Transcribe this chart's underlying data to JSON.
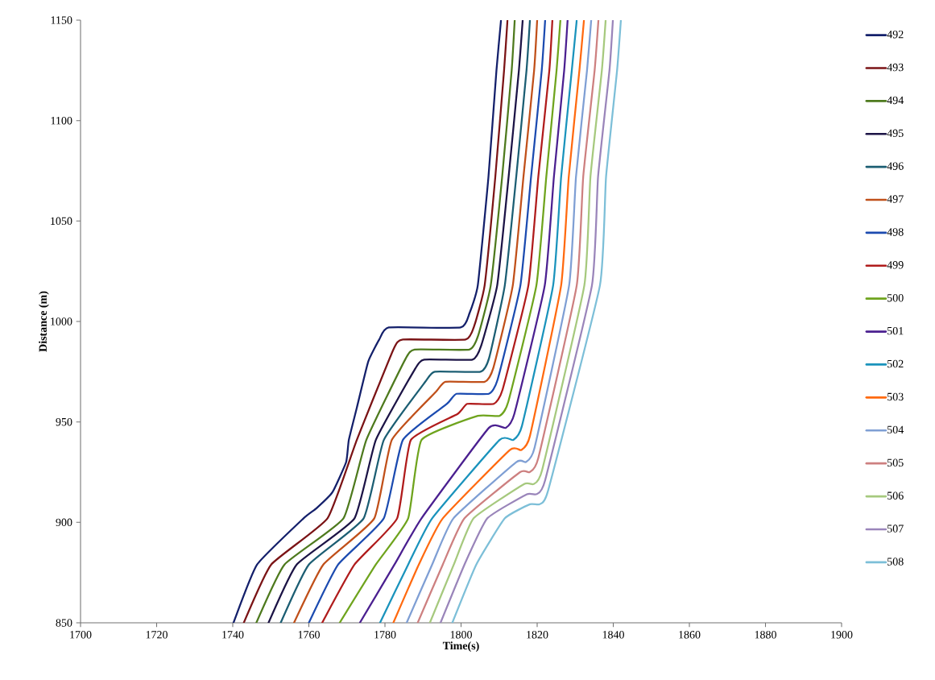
{
  "chart_data": {
    "type": "line",
    "xlabel": "Time(s)",
    "ylabel": "Distance (m)",
    "xlim": [
      1700,
      1900
    ],
    "ylim": [
      850,
      1150
    ],
    "xticks": [
      1700,
      1720,
      1740,
      1760,
      1780,
      1800,
      1820,
      1840,
      1860,
      1880,
      1900
    ],
    "yticks": [
      850,
      900,
      950,
      1000,
      1050,
      1100,
      1150
    ],
    "legend": "right",
    "marker": "none",
    "line_style": "solid",
    "series": [
      {
        "name": "492",
        "color": "#14206b",
        "x": [
          1740.2,
          1746.4,
          1758.6,
          1762.0,
          1766.2,
          1769.8,
          1770.5,
          1772.6,
          1775.6,
          1778.5,
          1781.0,
          1799.9,
          1802.2,
          1804.4,
          1807.2,
          1809.3,
          1810.5
        ],
        "values": [
          850,
          879,
          902,
          907,
          915,
          930,
          941,
          957,
          980,
          991,
          997,
          997,
          1004,
          1018,
          1072,
          1125,
          1150
        ]
      },
      {
        "name": "493",
        "color": "#7b1416",
        "x": [
          1742.9,
          1750.1,
          1764.9,
          1772.6,
          1782.2,
          1784.7,
          1801.2,
          1803.5,
          1806.2,
          1809.0,
          1811.3,
          1812.2
        ],
        "values": [
          850,
          879,
          902,
          941,
          986,
          991,
          991,
          998,
          1018,
          1072,
          1125,
          1150
        ]
      },
      {
        "name": "494",
        "color": "#4e7a1e",
        "x": [
          1746.2,
          1753.6,
          1769.1,
          1775.1,
          1785.3,
          1787.8,
          1802.2,
          1804.5,
          1807.8,
          1810.8,
          1813.3,
          1814.1
        ],
        "values": [
          850,
          879,
          902,
          941,
          981,
          986,
          986,
          993,
          1018,
          1072,
          1125,
          1150
        ]
      },
      {
        "name": "495",
        "color": "#1c1446",
        "x": [
          1749.4,
          1756.8,
          1772.0,
          1777.6,
          1787.8,
          1790.3,
          1803.0,
          1805.3,
          1809.5,
          1812.5,
          1815.2,
          1816.2
        ],
        "values": [
          850,
          879,
          902,
          941,
          976,
          981,
          981,
          988,
          1018,
          1072,
          1125,
          1150
        ]
      },
      {
        "name": "496",
        "color": "#1c5e73",
        "x": [
          1752.6,
          1760.0,
          1774.4,
          1779.7,
          1790.6,
          1793.1,
          1805.1,
          1807.4,
          1811.5,
          1814.5,
          1817.2,
          1818.1
        ],
        "values": [
          850,
          879,
          902,
          941,
          970,
          975,
          975,
          982,
          1018,
          1072,
          1125,
          1150
        ]
      },
      {
        "name": "497",
        "color": "#c0501a",
        "x": [
          1756.1,
          1763.8,
          1777.2,
          1781.8,
          1793.4,
          1795.9,
          1806.2,
          1808.5,
          1813.6,
          1816.4,
          1819.2,
          1820.0
        ],
        "values": [
          850,
          879,
          902,
          941,
          965,
          970,
          970,
          977,
          1018,
          1072,
          1125,
          1150
        ]
      },
      {
        "name": "498",
        "color": "#1c4bb0",
        "x": [
          1760.0,
          1767.7,
          1779.7,
          1784.7,
          1796.3,
          1798.8,
          1807.3,
          1809.6,
          1815.6,
          1818.4,
          1821.2,
          1822.1
        ],
        "values": [
          850,
          879,
          902,
          941,
          959,
          964,
          964,
          971,
          1018,
          1072,
          1125,
          1150
        ]
      },
      {
        "name": "499",
        "color": "#b01c1c",
        "x": [
          1763.5,
          1772.0,
          1783.2,
          1786.8,
          1799.1,
          1801.6,
          1808.6,
          1810.9,
          1817.7,
          1820.3,
          1823.2,
          1824.0
        ],
        "values": [
          850,
          879,
          902,
          941,
          954,
          959,
          959,
          966,
          1018,
          1072,
          1125,
          1150
        ]
      },
      {
        "name": "500",
        "color": "#6fa41e",
        "x": [
          1768.1,
          1777.6,
          1786.1,
          1789.6,
          1804.4,
          1810.1,
          1812.4,
          1819.8,
          1822.4,
          1825.1,
          1826.1
        ],
        "values": [
          850,
          879,
          902,
          941,
          953,
          953,
          960,
          1018,
          1072,
          1125,
          1150
        ]
      },
      {
        "name": "501",
        "color": "#4b2090",
        "x": [
          1773.4,
          1782.5,
          1789.6,
          1807.3,
          1811.7,
          1814.0,
          1822.0,
          1824.4,
          1827.1,
          1828.0
        ],
        "values": [
          850,
          879,
          902,
          947,
          947,
          954,
          1018,
          1072,
          1125,
          1150
        ]
      },
      {
        "name": "502",
        "color": "#1a93bc",
        "x": [
          1778.7,
          1786.1,
          1792.4,
          1810.1,
          1813.7,
          1816.0,
          1824.2,
          1826.3,
          1829.1,
          1830.4
        ],
        "values": [
          850,
          879,
          902,
          941,
          941,
          948,
          1018,
          1072,
          1125,
          1150
        ]
      },
      {
        "name": "503",
        "color": "#ff6a10",
        "x": [
          1782.2,
          1788.9,
          1795.2,
          1812.8,
          1815.8,
          1818.1,
          1826.3,
          1828.3,
          1831.1,
          1832.3
        ],
        "values": [
          850,
          879,
          902,
          936,
          936,
          943,
          1018,
          1072,
          1125,
          1150
        ]
      },
      {
        "name": "504",
        "color": "#7f9fd4",
        "x": [
          1785.7,
          1792.4,
          1798.0,
          1814.5,
          1817.0,
          1819.3,
          1828.4,
          1830.2,
          1833.1,
          1834.2
        ],
        "values": [
          850,
          879,
          902,
          930,
          930,
          937,
          1018,
          1072,
          1125,
          1150
        ]
      },
      {
        "name": "505",
        "color": "#cd8080",
        "x": [
          1788.6,
          1795.2,
          1800.9,
          1815.5,
          1818.0,
          1820.3,
          1830.4,
          1832.1,
          1835.1,
          1836.1
        ],
        "values": [
          850,
          879,
          902,
          925,
          925,
          932,
          1018,
          1072,
          1125,
          1150
        ]
      },
      {
        "name": "506",
        "color": "#a6c97e",
        "x": [
          1791.8,
          1798.1,
          1803.3,
          1816.5,
          1819.0,
          1821.3,
          1832.4,
          1834.0,
          1837.0,
          1838.0
        ],
        "values": [
          850,
          879,
          902,
          919,
          919,
          926,
          1018,
          1072,
          1125,
          1150
        ]
      },
      {
        "name": "507",
        "color": "#9a85ba",
        "x": [
          1794.6,
          1800.9,
          1806.9,
          1817.3,
          1819.8,
          1822.1,
          1834.4,
          1836.0,
          1839.0,
          1839.9
        ],
        "values": [
          850,
          879,
          902,
          914,
          914,
          921,
          1018,
          1072,
          1125,
          1150
        ]
      },
      {
        "name": "508",
        "color": "#7dbfd8",
        "x": [
          1797.7,
          1804.0,
          1811.5,
          1818.1,
          1820.6,
          1822.9,
          1836.5,
          1838.1,
          1841.0,
          1842.0
        ],
        "values": [
          850,
          879,
          902,
          909,
          909,
          916,
          1018,
          1072,
          1125,
          1150
        ]
      }
    ]
  }
}
